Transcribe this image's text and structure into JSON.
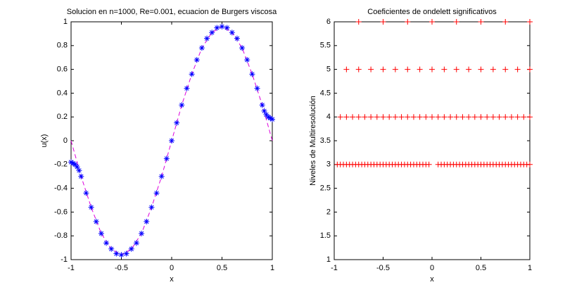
{
  "chart_data": [
    {
      "type": "line",
      "title": "Solucion en n=1000, Re=0.001, ecuacion de Burgers viscosa",
      "xlabel": "x",
      "ylabel": "u(x)",
      "xlim": [
        -1,
        1
      ],
      "ylim": [
        -1,
        1
      ],
      "xticks": [
        -1,
        -0.5,
        0,
        0.5,
        1
      ],
      "yticks": [
        -1,
        -0.8,
        -0.6,
        -0.4,
        -0.2,
        0,
        0.2,
        0.4,
        0.6,
        0.8,
        1
      ],
      "series": [
        {
          "color": "#dd00dd",
          "line": "dashed",
          "marker": "none",
          "x": [
            -1,
            -0.9,
            -0.8,
            -0.7,
            -0.6,
            -0.5,
            -0.4,
            -0.3,
            -0.2,
            -0.1,
            0,
            0.1,
            0.2,
            0.3,
            0.4,
            0.5,
            0.6,
            0.7,
            0.8,
            0.9,
            1
          ],
          "values": [
            0,
            -0.3,
            -0.56,
            -0.78,
            -0.91,
            -0.96,
            -0.91,
            -0.78,
            -0.56,
            -0.3,
            0,
            0.3,
            0.56,
            0.78,
            0.91,
            0.96,
            0.91,
            0.78,
            0.56,
            0.3,
            0
          ]
        },
        {
          "color": "#0000ff",
          "line": "none",
          "marker": "*",
          "x": [
            -1,
            -0.98,
            -0.96,
            -0.94,
            -0.92,
            -0.9,
            -0.85,
            -0.8,
            -0.75,
            -0.7,
            -0.65,
            -0.6,
            -0.55,
            -0.5,
            -0.45,
            -0.4,
            -0.35,
            -0.3,
            -0.25,
            -0.2,
            -0.15,
            -0.1,
            -0.05,
            0,
            0.05,
            0.1,
            0.15,
            0.2,
            0.25,
            0.3,
            0.35,
            0.4,
            0.45,
            0.5,
            0.55,
            0.6,
            0.65,
            0.7,
            0.75,
            0.8,
            0.85,
            0.9,
            0.92,
            0.94,
            0.96,
            0.98,
            1
          ],
          "values": [
            -0.18,
            -0.19,
            -0.2,
            -0.22,
            -0.25,
            -0.3,
            -0.44,
            -0.56,
            -0.68,
            -0.78,
            -0.86,
            -0.91,
            -0.95,
            -0.96,
            -0.95,
            -0.91,
            -0.86,
            -0.78,
            -0.68,
            -0.56,
            -0.44,
            -0.3,
            -0.15,
            0,
            0.15,
            0.3,
            0.44,
            0.56,
            0.68,
            0.78,
            0.86,
            0.91,
            0.95,
            0.96,
            0.95,
            0.91,
            0.86,
            0.78,
            0.68,
            0.56,
            0.44,
            0.3,
            0.25,
            0.22,
            0.2,
            0.19,
            0.18
          ]
        }
      ]
    },
    {
      "type": "scatter",
      "title": "Coeficientes de ondelett significativos",
      "xlabel": "x",
      "ylabel": "Niveles de Multiresolución",
      "xlim": [
        -1,
        1
      ],
      "ylim": [
        1,
        6
      ],
      "xticks": [
        -1,
        -0.5,
        0,
        0.5,
        1
      ],
      "yticks": [
        1,
        1.5,
        2,
        2.5,
        3,
        3.5,
        4,
        4.5,
        5,
        5.5,
        6
      ],
      "series": [
        {
          "color": "#ff0000",
          "marker": "+",
          "x": [
            -0.96875,
            -0.9375,
            -0.90625,
            -0.875,
            -0.84375,
            -0.8125,
            -0.78125,
            -0.75,
            -0.71875,
            -0.6875,
            -0.65625,
            -0.625,
            -0.59375,
            -0.5625,
            -0.53125,
            -0.5,
            -0.46875,
            -0.4375,
            -0.40625,
            -0.375,
            -0.34375,
            -0.3125,
            -0.28125,
            -0.25,
            -0.21875,
            -0.1875,
            -0.15625,
            -0.125,
            -0.09375,
            -0.0625,
            -0.03125,
            0.0625,
            0.09375,
            0.125,
            0.15625,
            0.1875,
            0.21875,
            0.25,
            0.28125,
            0.3125,
            0.34375,
            0.375,
            0.40625,
            0.4375,
            0.46875,
            0.5,
            0.53125,
            0.5625,
            0.59375,
            0.625,
            0.65625,
            0.6875,
            0.71875,
            0.75,
            0.78125,
            0.8125,
            0.84375,
            0.875,
            0.90625,
            0.9375,
            0.96875,
            1
          ],
          "values": [
            3,
            3,
            3,
            3,
            3,
            3,
            3,
            3,
            3,
            3,
            3,
            3,
            3,
            3,
            3,
            3,
            3,
            3,
            3,
            3,
            3,
            3,
            3,
            3,
            3,
            3,
            3,
            3,
            3,
            3,
            3,
            3,
            3,
            3,
            3,
            3,
            3,
            3,
            3,
            3,
            3,
            3,
            3,
            3,
            3,
            3,
            3,
            3,
            3,
            3,
            3,
            3,
            3,
            3,
            3,
            3,
            3,
            3,
            3,
            3,
            3,
            3
          ]
        },
        {
          "color": "#ff0000",
          "marker": "+",
          "x": [
            -0.9375,
            -0.875,
            -0.8125,
            -0.75,
            -0.6875,
            -0.625,
            -0.5625,
            -0.5,
            -0.4375,
            -0.375,
            -0.3125,
            -0.25,
            -0.1875,
            -0.125,
            -0.0625,
            0,
            0.0625,
            0.125,
            0.1875,
            0.25,
            0.3125,
            0.375,
            0.4375,
            0.5,
            0.5625,
            0.625,
            0.6875,
            0.75,
            0.8125,
            0.875,
            0.9375,
            1
          ],
          "values": [
            4,
            4,
            4,
            4,
            4,
            4,
            4,
            4,
            4,
            4,
            4,
            4,
            4,
            4,
            4,
            4,
            4,
            4,
            4,
            4,
            4,
            4,
            4,
            4,
            4,
            4,
            4,
            4,
            4,
            4,
            4,
            4
          ]
        },
        {
          "color": "#ff0000",
          "marker": "+",
          "x": [
            -0.875,
            -0.75,
            -0.625,
            -0.5,
            -0.375,
            -0.25,
            -0.125,
            0,
            0.125,
            0.25,
            0.375,
            0.5,
            0.625,
            0.75,
            0.875,
            1
          ],
          "values": [
            5,
            5,
            5,
            5,
            5,
            5,
            5,
            5,
            5,
            5,
            5,
            5,
            5,
            5,
            5,
            5
          ]
        },
        {
          "color": "#ff0000",
          "marker": "+",
          "x": [
            -0.75,
            -0.5,
            -0.25,
            0,
            0.25,
            0.5,
            0.75,
            1
          ],
          "values": [
            6,
            6,
            6,
            6,
            6,
            6,
            6,
            6
          ]
        }
      ]
    }
  ]
}
